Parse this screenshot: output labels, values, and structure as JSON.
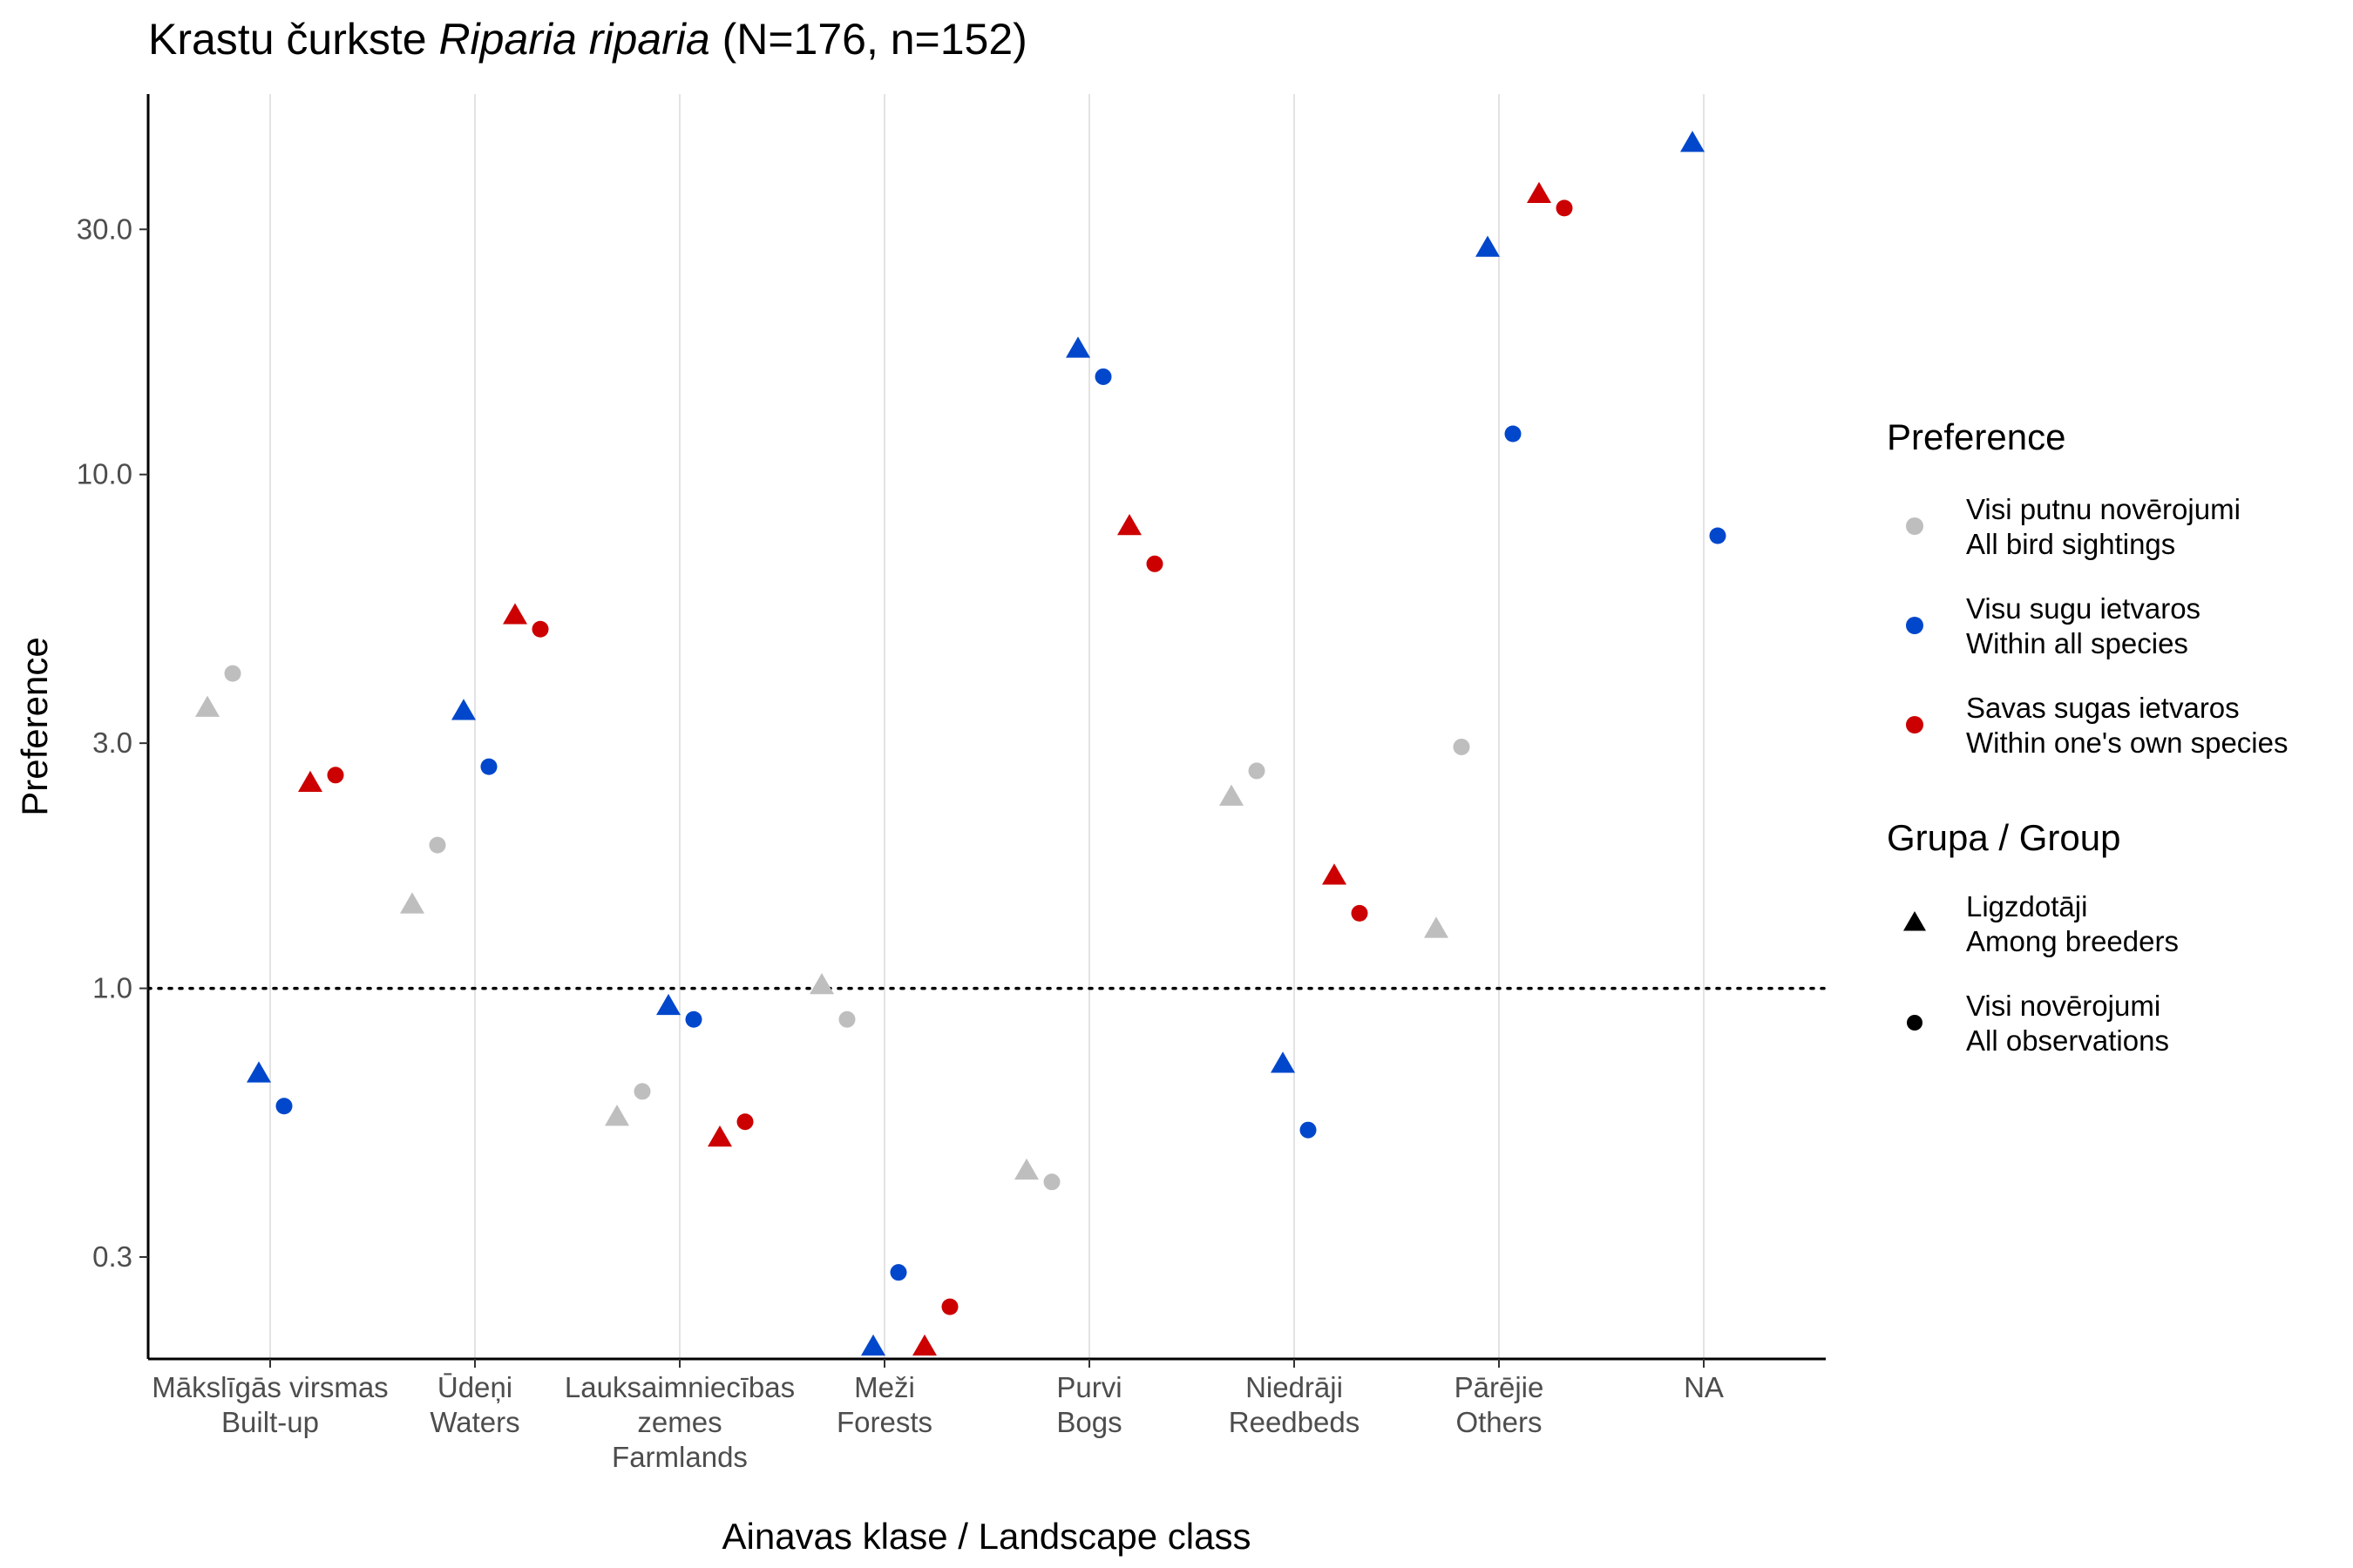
{
  "chart_data": {
    "type": "scatter",
    "title": {
      "prefix": "Krastu čurkste ",
      "italic": "Riparia riparia",
      "suffix": " (N=176, n=152)"
    },
    "xlabel": "Ainavas klase / Landscape class",
    "ylabel": "Preference",
    "y_scale": "log",
    "ylim": [
      0.19,
      55
    ],
    "y_ticks": [
      0.3,
      1.0,
      3.0,
      10.0,
      30.0
    ],
    "y_tick_labels": [
      "0.3",
      "1.0",
      "3.0",
      "10.0",
      "30.0"
    ],
    "reference_line": 1.0,
    "grid": "vertical-major",
    "legend_position": "right",
    "categories": [
      {
        "key": "built",
        "lines": [
          "Mākslīgās virsmas",
          "Built-up"
        ]
      },
      {
        "key": "waters",
        "lines": [
          "Ūdeņi",
          "Waters"
        ]
      },
      {
        "key": "farm",
        "lines": [
          "Lauksaimniecības",
          "zemes",
          "Farmlands"
        ]
      },
      {
        "key": "forests",
        "lines": [
          "Meži",
          "Forests"
        ]
      },
      {
        "key": "bogs",
        "lines": [
          "Purvi",
          "Bogs"
        ]
      },
      {
        "key": "reed",
        "lines": [
          "Niedrāji",
          "Reedbeds"
        ]
      },
      {
        "key": "others",
        "lines": [
          "Pārējie",
          "Others"
        ]
      },
      {
        "key": "na",
        "lines": [
          "NA"
        ]
      }
    ],
    "preference_legend": {
      "title": "Preference",
      "items": [
        {
          "key": "all_birds",
          "lines": [
            "Visi putnu novērojumi",
            "All bird sightings"
          ],
          "color": "#BEBEBE"
        },
        {
          "key": "all_species",
          "lines": [
            "Visu sugu ietvaros",
            "Within all species"
          ],
          "color": "#0047CC"
        },
        {
          "key": "own_species",
          "lines": [
            "Savas sugas ietvaros",
            "Within one's own species"
          ],
          "color": "#CC0000"
        }
      ]
    },
    "group_legend": {
      "title": "Grupa / Group",
      "items": [
        {
          "key": "breeders",
          "lines": [
            "Ligzdotāji",
            "Among breeders"
          ],
          "shape": "triangle"
        },
        {
          "key": "all_obs",
          "lines": [
            "Visi novērojumi",
            "All observations"
          ],
          "shape": "circle"
        }
      ]
    },
    "series": [
      {
        "preference": "all_birds",
        "group": "breeders",
        "values": [
          3.5,
          1.45,
          0.56,
          1.01,
          0.44,
          2.35,
          1.3,
          null
        ]
      },
      {
        "preference": "all_birds",
        "group": "all_obs",
        "values": [
          4.1,
          1.9,
          0.63,
          0.87,
          0.42,
          2.65,
          2.95,
          null
        ]
      },
      {
        "preference": "all_species",
        "group": "breeders",
        "values": [
          0.68,
          3.45,
          0.92,
          0.2,
          17.5,
          0.71,
          27.5,
          44.0
        ]
      },
      {
        "preference": "all_species",
        "group": "all_obs",
        "values": [
          0.59,
          2.7,
          0.87,
          0.28,
          15.5,
          0.53,
          12.0,
          7.6
        ]
      },
      {
        "preference": "own_species",
        "group": "breeders",
        "values": [
          2.5,
          5.3,
          0.51,
          0.2,
          7.9,
          1.65,
          35.0,
          null
        ]
      },
      {
        "preference": "own_species",
        "group": "all_obs",
        "values": [
          2.6,
          5.0,
          0.55,
          0.24,
          6.7,
          1.4,
          33.0,
          null
        ]
      }
    ]
  }
}
